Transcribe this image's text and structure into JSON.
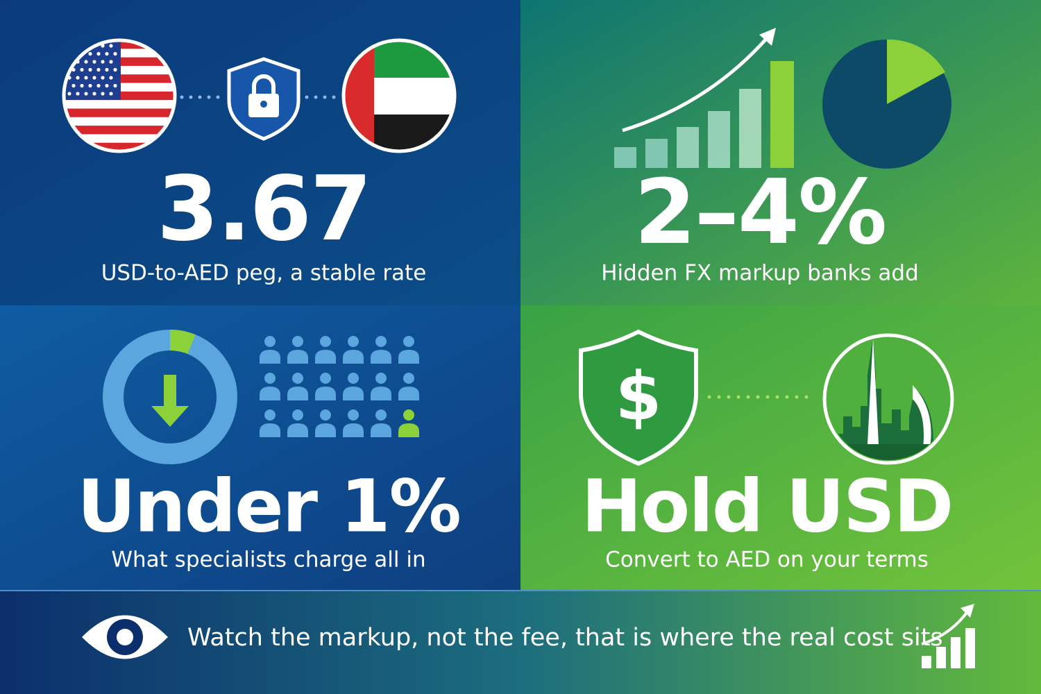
{
  "panels": [
    {
      "stat": "3.67",
      "caption": "USD-to-AED peg, a stable rate"
    },
    {
      "stat": "2–4%",
      "caption": "Hidden FX markup banks add"
    },
    {
      "stat": "Under 1%",
      "caption": "What specialists charge all in"
    },
    {
      "stat": "Hold USD",
      "caption": "Convert to AED on your terms"
    }
  ],
  "footer": {
    "text": "Watch the markup, not the fee, that is where the real cost sits"
  }
}
